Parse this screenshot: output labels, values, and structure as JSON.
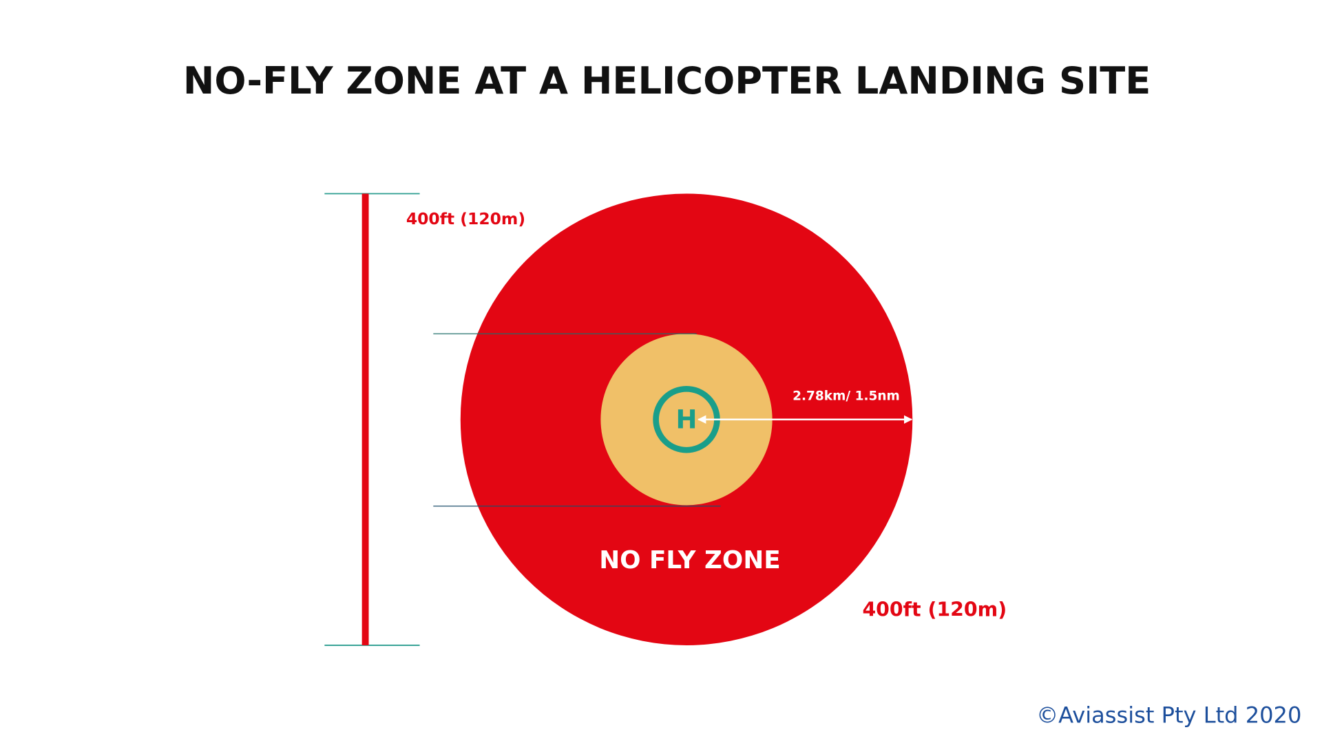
{
  "title": "NO-FLY ZONE AT A HELICOPTER LANDING SITE",
  "height_label": "400ft (120m)",
  "radius_label": "2.78km/ 1.5nm",
  "zone_label": "NO FLY ZONE",
  "corner_height_label": "400ft (120m)",
  "helipad_label": "H",
  "copyright": "©Aviassist Pty Ltd 2020"
}
